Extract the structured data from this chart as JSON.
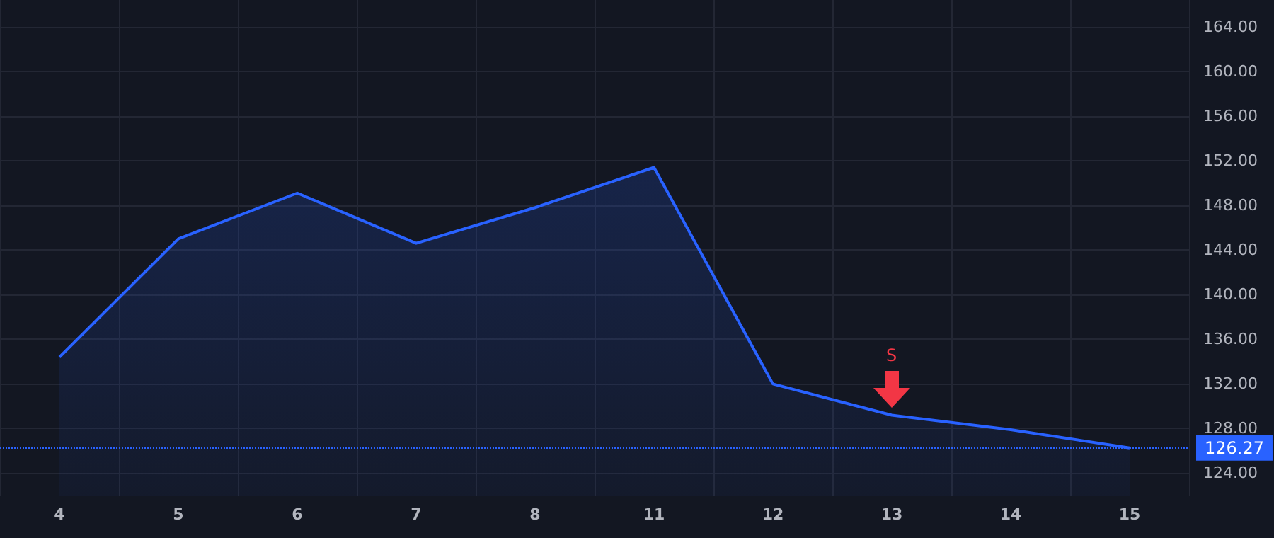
{
  "chart_data": {
    "type": "area",
    "categories": [
      "4",
      "5",
      "6",
      "7",
      "8",
      "11",
      "12",
      "13",
      "14",
      "15"
    ],
    "series": [
      {
        "color": "#2962ff",
        "values": [
          134.4,
          145.0,
          149.1,
          144.6,
          147.8,
          151.4,
          132.0,
          129.2,
          127.9,
          126.27
        ]
      }
    ],
    "ylim": [
      122,
      166.4
    ],
    "yticks": [
      {
        "value": 124,
        "label": "124.00"
      },
      {
        "value": 128,
        "label": "128.00"
      },
      {
        "value": 132,
        "label": "132.00"
      },
      {
        "value": 136,
        "label": "136.00"
      },
      {
        "value": 140,
        "label": "140.00"
      },
      {
        "value": 144,
        "label": "144.00"
      },
      {
        "value": 148,
        "label": "148.00"
      },
      {
        "value": 152,
        "label": "152.00"
      },
      {
        "value": 156,
        "label": "156.00"
      },
      {
        "value": 160,
        "label": "160.00"
      },
      {
        "value": 164,
        "label": "164.00"
      }
    ],
    "ref_lines": [
      {
        "axis": "y",
        "value": 126.27,
        "label": "126.27",
        "color": "#2962ff",
        "line_style": "dotted"
      }
    ],
    "annotations": [
      "S"
    ],
    "grid": true,
    "marker": "none",
    "line_style": "solid"
  }
}
